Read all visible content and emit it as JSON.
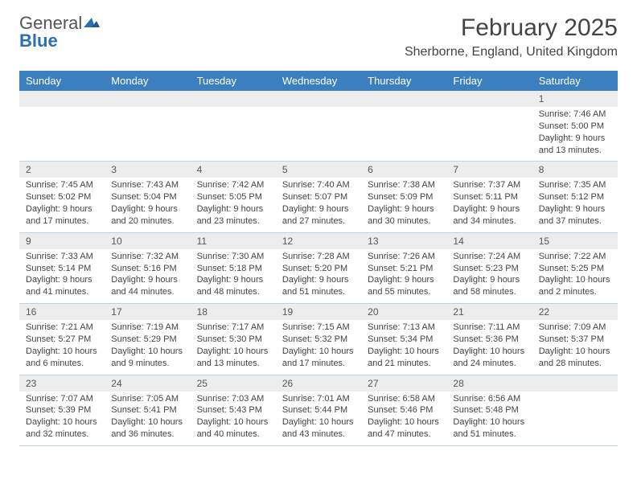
{
  "logo": {
    "line1": "General",
    "line2": "Blue"
  },
  "header": {
    "month_title": "February 2025",
    "location": "Sherborne, England, United Kingdom"
  },
  "colors": {
    "header_bg": "#3b7fbf",
    "header_text": "#ffffff",
    "daynum_bg": "#ededed",
    "week_border": "#88aed2",
    "logo_blue": "#2a6fb2",
    "logo_gray": "#555555"
  },
  "day_names": [
    "Sunday",
    "Monday",
    "Tuesday",
    "Wednesday",
    "Thursday",
    "Friday",
    "Saturday"
  ],
  "weeks": [
    [
      {
        "n": "",
        "sr": "",
        "ss": "",
        "dl": ""
      },
      {
        "n": "",
        "sr": "",
        "ss": "",
        "dl": ""
      },
      {
        "n": "",
        "sr": "",
        "ss": "",
        "dl": ""
      },
      {
        "n": "",
        "sr": "",
        "ss": "",
        "dl": ""
      },
      {
        "n": "",
        "sr": "",
        "ss": "",
        "dl": ""
      },
      {
        "n": "",
        "sr": "",
        "ss": "",
        "dl": ""
      },
      {
        "n": "1",
        "sr": "Sunrise: 7:46 AM",
        "ss": "Sunset: 5:00 PM",
        "dl": "Daylight: 9 hours and 13 minutes."
      }
    ],
    [
      {
        "n": "2",
        "sr": "Sunrise: 7:45 AM",
        "ss": "Sunset: 5:02 PM",
        "dl": "Daylight: 9 hours and 17 minutes."
      },
      {
        "n": "3",
        "sr": "Sunrise: 7:43 AM",
        "ss": "Sunset: 5:04 PM",
        "dl": "Daylight: 9 hours and 20 minutes."
      },
      {
        "n": "4",
        "sr": "Sunrise: 7:42 AM",
        "ss": "Sunset: 5:05 PM",
        "dl": "Daylight: 9 hours and 23 minutes."
      },
      {
        "n": "5",
        "sr": "Sunrise: 7:40 AM",
        "ss": "Sunset: 5:07 PM",
        "dl": "Daylight: 9 hours and 27 minutes."
      },
      {
        "n": "6",
        "sr": "Sunrise: 7:38 AM",
        "ss": "Sunset: 5:09 PM",
        "dl": "Daylight: 9 hours and 30 minutes."
      },
      {
        "n": "7",
        "sr": "Sunrise: 7:37 AM",
        "ss": "Sunset: 5:11 PM",
        "dl": "Daylight: 9 hours and 34 minutes."
      },
      {
        "n": "8",
        "sr": "Sunrise: 7:35 AM",
        "ss": "Sunset: 5:12 PM",
        "dl": "Daylight: 9 hours and 37 minutes."
      }
    ],
    [
      {
        "n": "9",
        "sr": "Sunrise: 7:33 AM",
        "ss": "Sunset: 5:14 PM",
        "dl": "Daylight: 9 hours and 41 minutes."
      },
      {
        "n": "10",
        "sr": "Sunrise: 7:32 AM",
        "ss": "Sunset: 5:16 PM",
        "dl": "Daylight: 9 hours and 44 minutes."
      },
      {
        "n": "11",
        "sr": "Sunrise: 7:30 AM",
        "ss": "Sunset: 5:18 PM",
        "dl": "Daylight: 9 hours and 48 minutes."
      },
      {
        "n": "12",
        "sr": "Sunrise: 7:28 AM",
        "ss": "Sunset: 5:20 PM",
        "dl": "Daylight: 9 hours and 51 minutes."
      },
      {
        "n": "13",
        "sr": "Sunrise: 7:26 AM",
        "ss": "Sunset: 5:21 PM",
        "dl": "Daylight: 9 hours and 55 minutes."
      },
      {
        "n": "14",
        "sr": "Sunrise: 7:24 AM",
        "ss": "Sunset: 5:23 PM",
        "dl": "Daylight: 9 hours and 58 minutes."
      },
      {
        "n": "15",
        "sr": "Sunrise: 7:22 AM",
        "ss": "Sunset: 5:25 PM",
        "dl": "Daylight: 10 hours and 2 minutes."
      }
    ],
    [
      {
        "n": "16",
        "sr": "Sunrise: 7:21 AM",
        "ss": "Sunset: 5:27 PM",
        "dl": "Daylight: 10 hours and 6 minutes."
      },
      {
        "n": "17",
        "sr": "Sunrise: 7:19 AM",
        "ss": "Sunset: 5:29 PM",
        "dl": "Daylight: 10 hours and 9 minutes."
      },
      {
        "n": "18",
        "sr": "Sunrise: 7:17 AM",
        "ss": "Sunset: 5:30 PM",
        "dl": "Daylight: 10 hours and 13 minutes."
      },
      {
        "n": "19",
        "sr": "Sunrise: 7:15 AM",
        "ss": "Sunset: 5:32 PM",
        "dl": "Daylight: 10 hours and 17 minutes."
      },
      {
        "n": "20",
        "sr": "Sunrise: 7:13 AM",
        "ss": "Sunset: 5:34 PM",
        "dl": "Daylight: 10 hours and 21 minutes."
      },
      {
        "n": "21",
        "sr": "Sunrise: 7:11 AM",
        "ss": "Sunset: 5:36 PM",
        "dl": "Daylight: 10 hours and 24 minutes."
      },
      {
        "n": "22",
        "sr": "Sunrise: 7:09 AM",
        "ss": "Sunset: 5:37 PM",
        "dl": "Daylight: 10 hours and 28 minutes."
      }
    ],
    [
      {
        "n": "23",
        "sr": "Sunrise: 7:07 AM",
        "ss": "Sunset: 5:39 PM",
        "dl": "Daylight: 10 hours and 32 minutes."
      },
      {
        "n": "24",
        "sr": "Sunrise: 7:05 AM",
        "ss": "Sunset: 5:41 PM",
        "dl": "Daylight: 10 hours and 36 minutes."
      },
      {
        "n": "25",
        "sr": "Sunrise: 7:03 AM",
        "ss": "Sunset: 5:43 PM",
        "dl": "Daylight: 10 hours and 40 minutes."
      },
      {
        "n": "26",
        "sr": "Sunrise: 7:01 AM",
        "ss": "Sunset: 5:44 PM",
        "dl": "Daylight: 10 hours and 43 minutes."
      },
      {
        "n": "27",
        "sr": "Sunrise: 6:58 AM",
        "ss": "Sunset: 5:46 PM",
        "dl": "Daylight: 10 hours and 47 minutes."
      },
      {
        "n": "28",
        "sr": "Sunrise: 6:56 AM",
        "ss": "Sunset: 5:48 PM",
        "dl": "Daylight: 10 hours and 51 minutes."
      },
      {
        "n": "",
        "sr": "",
        "ss": "",
        "dl": ""
      }
    ]
  ]
}
